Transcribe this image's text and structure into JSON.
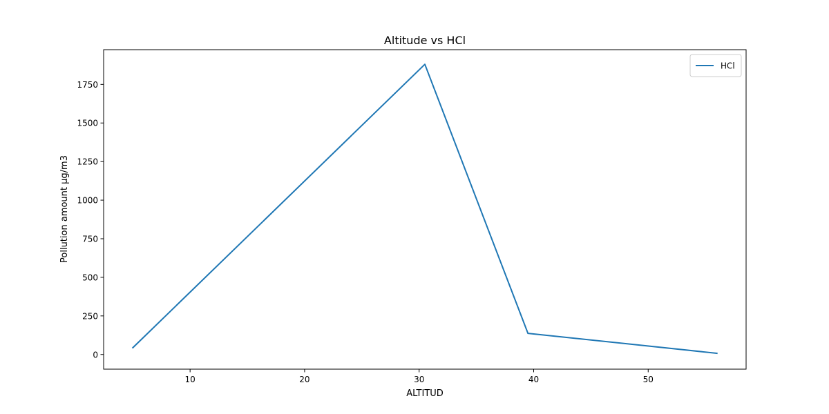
{
  "chart_data": {
    "type": "line",
    "title": "Altitude vs HCl",
    "xlabel": "ALTITUD",
    "ylabel": "Pollution amount µg/m3",
    "xlim": [
      2.45,
      58.55
    ],
    "ylim": [
      -95,
      1975
    ],
    "xticks": [
      10,
      20,
      30,
      40,
      50
    ],
    "yticks": [
      0,
      250,
      500,
      750,
      1000,
      1250,
      1500,
      1750
    ],
    "grid": false,
    "legend": {
      "position": "top-right"
    },
    "series": [
      {
        "name": "HCl",
        "color": "#1f77b4",
        "x": [
          5,
          30.5,
          39.5,
          56
        ],
        "y": [
          44,
          1880,
          137,
          8
        ]
      }
    ]
  }
}
